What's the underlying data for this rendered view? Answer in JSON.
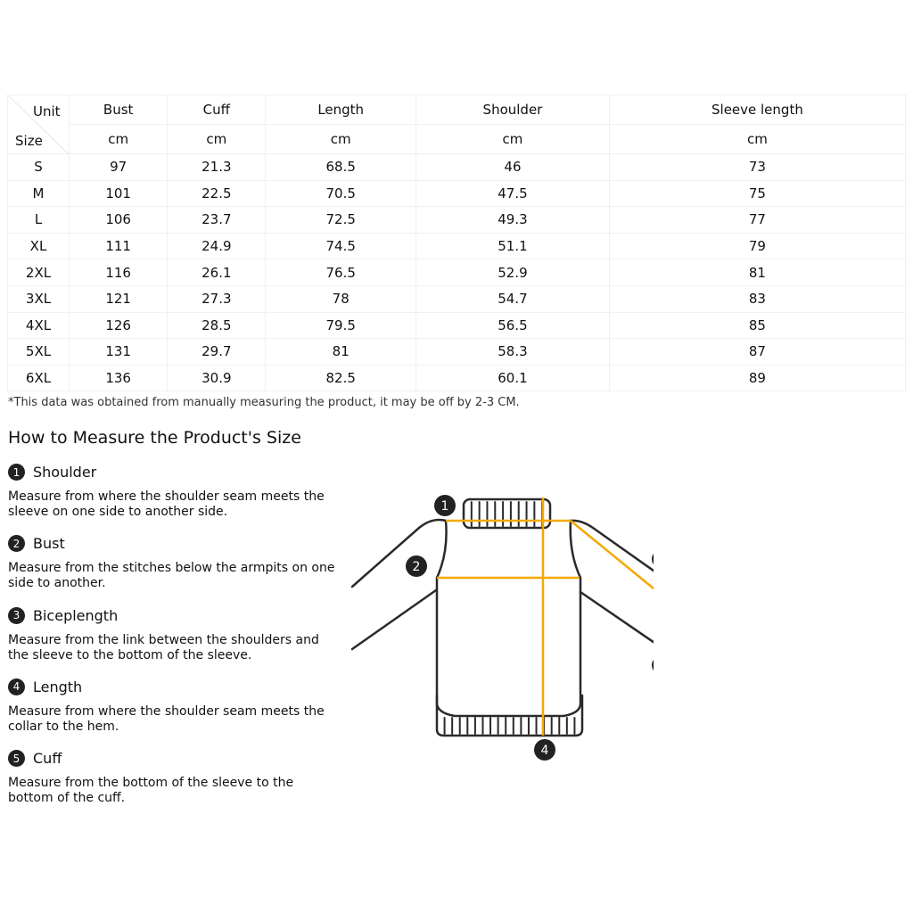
{
  "table": {
    "unit_label": "Unit",
    "size_label": "Size",
    "columns": [
      "Bust",
      "Cuff",
      "Length",
      "Shoulder",
      "Sleeve length"
    ],
    "units": [
      "cm",
      "cm",
      "cm",
      "cm",
      "cm"
    ],
    "rows": [
      [
        "S",
        "97",
        "21.3",
        "68.5",
        "46",
        "73"
      ],
      [
        "M",
        "101",
        "22.5",
        "70.5",
        "47.5",
        "75"
      ],
      [
        "L",
        "106",
        "23.7",
        "72.5",
        "49.3",
        "77"
      ],
      [
        "XL",
        "111",
        "24.9",
        "74.5",
        "51.1",
        "79"
      ],
      [
        "2XL",
        "116",
        "26.1",
        "76.5",
        "52.9",
        "81"
      ],
      [
        "3XL",
        "121",
        "27.3",
        "78",
        "54.7",
        "83"
      ],
      [
        "4XL",
        "126",
        "28.5",
        "79.5",
        "56.5",
        "85"
      ],
      [
        "5XL",
        "131",
        "29.7",
        "81",
        "58.3",
        "87"
      ],
      [
        "6XL",
        "136",
        "30.9",
        "82.5",
        "60.1",
        "89"
      ]
    ]
  },
  "note": "*This data was obtained from manually measuring the product, it may be off by 2-3 CM.",
  "heading": "How to Measure the Product's Size",
  "items": [
    {
      "num": "1",
      "title": "Shoulder",
      "desc": "Measure from where the shoulder seam meets the sleeve on one side to another side."
    },
    {
      "num": "2",
      "title": "Bust",
      "desc": "Measure from the stitches below the armpits on one side to another."
    },
    {
      "num": "3",
      "title": "Biceplength",
      "desc": "Measure from the link between the shoulders and the sleeve to the bottom of the sleeve."
    },
    {
      "num": "4",
      "title": "Length",
      "desc": "Measure from where the shoulder seam meets the collar to the hem."
    },
    {
      "num": "5",
      "title": "Cuff",
      "desc": "Measure from the bottom of the sleeve to the bottom of the cuff."
    }
  ],
  "diagram": {
    "markers": [
      "1",
      "2",
      "4"
    ],
    "line_color": "#f5a800",
    "outline_color": "#2a2a2a"
  }
}
